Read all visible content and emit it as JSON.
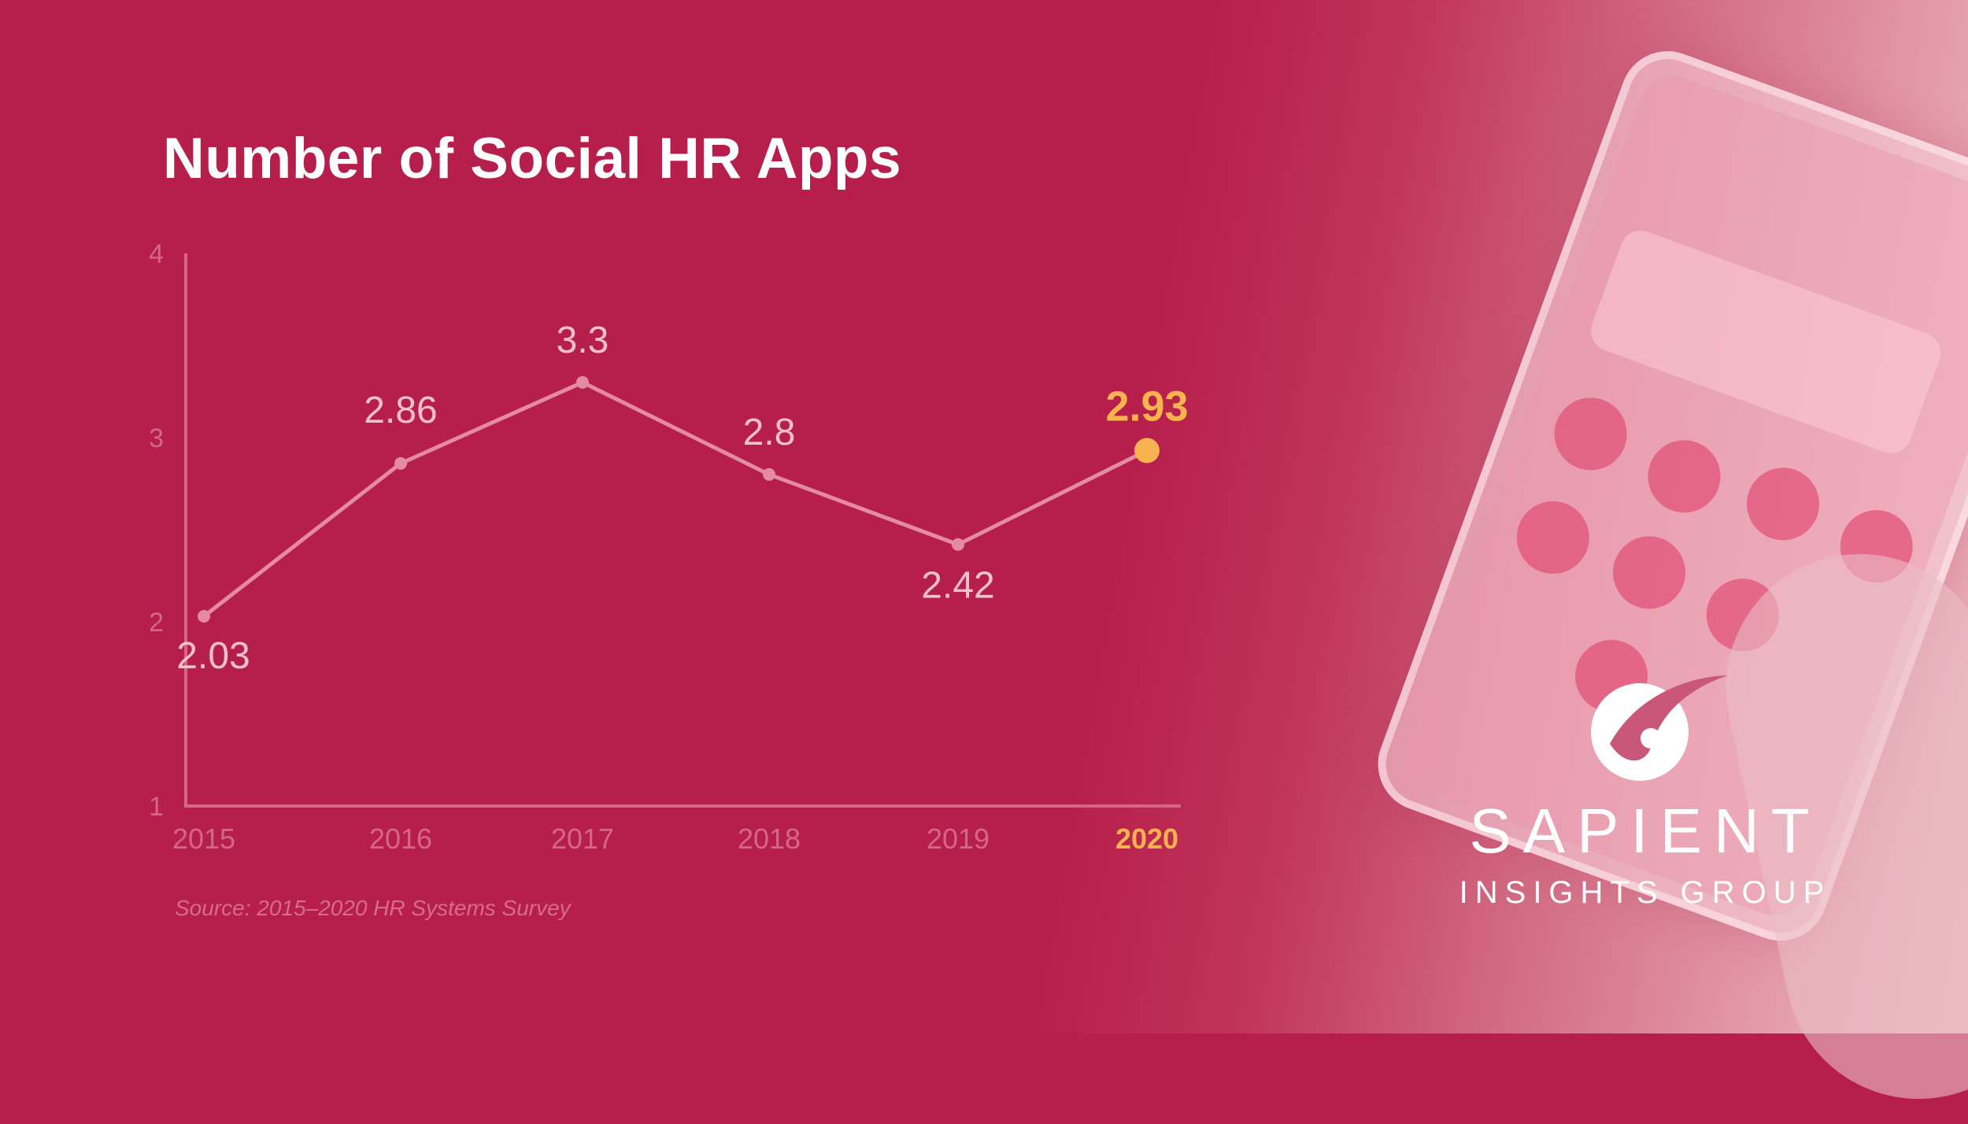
{
  "chart_data": {
    "type": "line",
    "title": "Number of Social HR Apps",
    "categories": [
      "2015",
      "2016",
      "2017",
      "2018",
      "2019",
      "2020"
    ],
    "series": [
      {
        "values": [
          2.03,
          2.86,
          3.3,
          2.8,
          2.42,
          2.93
        ]
      }
    ],
    "data_labels": [
      "2.03",
      "2.86",
      "3.3",
      "2.8",
      "2.42",
      "2.93"
    ],
    "yticks": [
      1,
      2,
      3,
      4
    ],
    "ylim": [
      1,
      4
    ],
    "grid": false,
    "highlight": {
      "category": "2020",
      "color": "#f6b34f"
    },
    "line_color": "#e58aa3",
    "label_color": "#f2c0cd",
    "axis_color": "#d66688",
    "source": "Source: 2015–2020 HR Systems Survey"
  },
  "brand": {
    "name": "SAPIENT",
    "subtitle": "INSIGHTS GROUP",
    "logo_icon": "sapient-swoosh-icon"
  },
  "colors": {
    "background": "#b61e4b",
    "title": "#ffffff"
  }
}
